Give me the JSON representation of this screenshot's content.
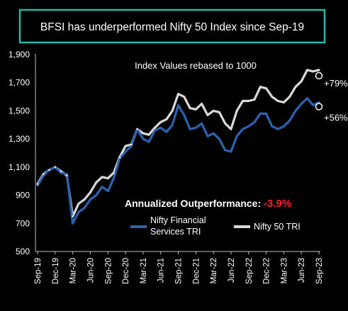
{
  "headline": "BFSI has underperformed Nifty 50 Index since Sep-19",
  "subtitle": "Index Values rebased to 1000",
  "outperformance": {
    "label": "Annualized Outperformance: ",
    "value": "-3.9%"
  },
  "end_labels": {
    "nifty50": "+79%",
    "financial": "+56%"
  },
  "colors": {
    "background": "#000000",
    "frame": "#2ab7a9",
    "nifty50": "#d9d9d9",
    "financial": "#2a63b0",
    "negative": "#ff2020",
    "text": "#ffffff"
  },
  "chart_data": {
    "type": "line",
    "title": "BFSI has underperformed Nifty 50 Index since Sep-19",
    "subtitle": "Index Values rebased to 1000",
    "ylim": [
      500,
      1900
    ],
    "yticks": [
      "500",
      "700",
      "900",
      "1,100",
      "1,300",
      "1,500",
      "1,700",
      "1,900"
    ],
    "xticks": [
      "Sep-19",
      "Dec-19",
      "Mar-20",
      "Jun-20",
      "Sep-20",
      "Dec-20",
      "Mar-21",
      "Jun-21",
      "Sep-21",
      "Dec-21",
      "Mar-22",
      "Jun-22",
      "Sep-22",
      "Dec-22",
      "Mar-23",
      "Jun-23",
      "Sep-23"
    ],
    "x": [
      "Sep-19",
      "Oct-19",
      "Nov-19",
      "Dec-19",
      "Jan-20",
      "Feb-20",
      "Mar-20",
      "Apr-20",
      "May-20",
      "Jun-20",
      "Jul-20",
      "Aug-20",
      "Sep-20",
      "Oct-20",
      "Nov-20",
      "Dec-20",
      "Jan-21",
      "Feb-21",
      "Mar-21",
      "Apr-21",
      "May-21",
      "Jun-21",
      "Jul-21",
      "Aug-21",
      "Sep-21",
      "Oct-21",
      "Nov-21",
      "Dec-21",
      "Jan-22",
      "Feb-22",
      "Mar-22",
      "Apr-22",
      "May-22",
      "Jun-22",
      "Jul-22",
      "Aug-22",
      "Sep-22",
      "Oct-22",
      "Nov-22",
      "Dec-22",
      "Jan-23",
      "Feb-23",
      "Mar-23",
      "Apr-23",
      "May-23",
      "Jun-23",
      "Jul-23",
      "Aug-23",
      "Sep-23"
    ],
    "series": [
      {
        "name": "Nifty Financial Services TRI",
        "values": [
          970,
          1040,
          1080,
          1100,
          1060,
          1050,
          700,
          780,
          810,
          870,
          900,
          960,
          930,
          1020,
          1160,
          1210,
          1250,
          1370,
          1300,
          1280,
          1360,
          1380,
          1350,
          1400,
          1540,
          1470,
          1370,
          1380,
          1410,
          1320,
          1340,
          1300,
          1220,
          1210,
          1320,
          1370,
          1390,
          1420,
          1480,
          1480,
          1390,
          1370,
          1390,
          1430,
          1500,
          1550,
          1590,
          1540,
          1560
        ]
      },
      {
        "name": "Nifty 50 TRI",
        "values": [
          980,
          1050,
          1080,
          1100,
          1070,
          1040,
          750,
          840,
          870,
          920,
          990,
          1030,
          1020,
          1060,
          1170,
          1250,
          1260,
          1370,
          1340,
          1330,
          1380,
          1420,
          1440,
          1500,
          1620,
          1600,
          1520,
          1510,
          1550,
          1470,
          1500,
          1490,
          1410,
          1370,
          1500,
          1570,
          1570,
          1580,
          1670,
          1660,
          1600,
          1570,
          1560,
          1600,
          1670,
          1710,
          1790,
          1780,
          1790
        ]
      }
    ],
    "legend_position": "bottom-center",
    "grid": false
  }
}
